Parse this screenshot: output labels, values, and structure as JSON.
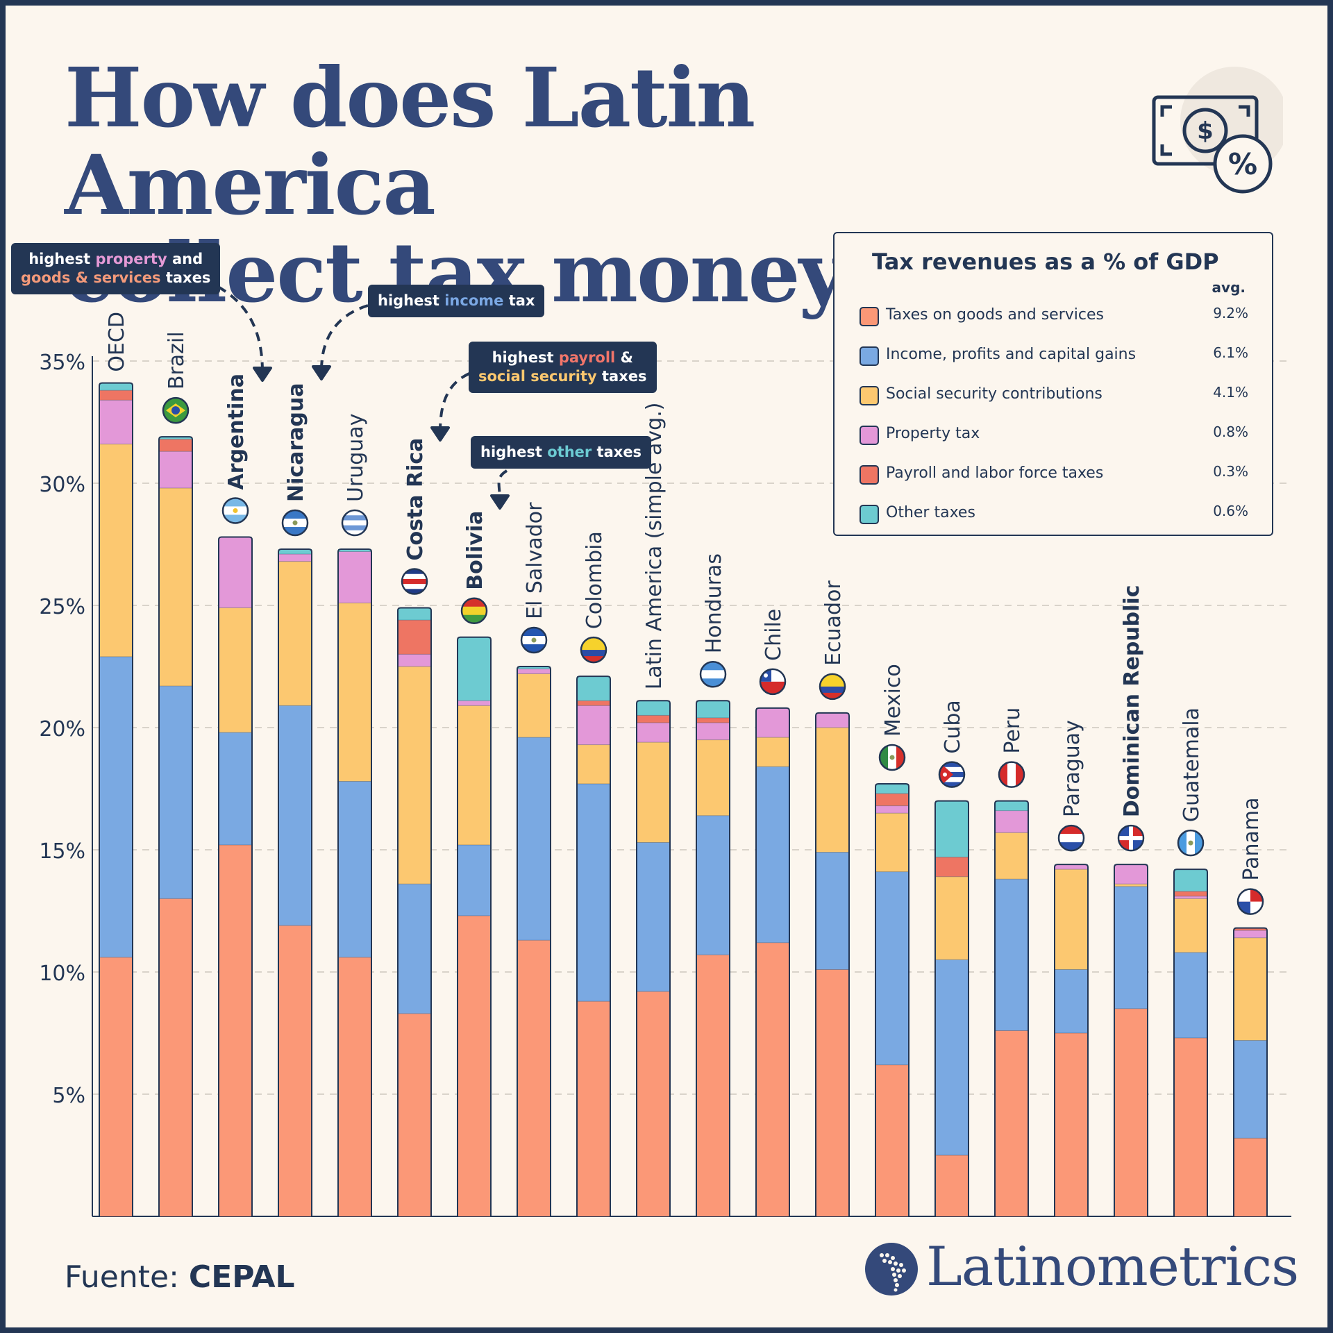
{
  "title_line1": "How does Latin America",
  "title_line2": "collect tax money?",
  "source_prefix": "Fuente:",
  "source_name": "CEPAL",
  "brand": "Latinometrics",
  "legend": {
    "title": "Tax revenues as a % of GDP",
    "avg_header": "avg.",
    "items": [
      {
        "label": "Taxes on goods and services",
        "avg": "9.2%",
        "color": "#fb9877"
      },
      {
        "label": "Income, profits and capital gains",
        "avg": "6.1%",
        "color": "#7aa9e2"
      },
      {
        "label": "Social security contributions",
        "avg": "4.1%",
        "color": "#fcc870"
      },
      {
        "label": "Property tax",
        "avg": "0.8%",
        "color": "#e398d8"
      },
      {
        "label": "Payroll and labor force taxes",
        "avg": "0.3%",
        "color": "#ee7563"
      },
      {
        "label": "Other taxes",
        "avg": "0.6%",
        "color": "#6dcbd1"
      }
    ]
  },
  "callouts": {
    "property": {
      "t1": "highest ",
      "h1": "property",
      "t2": " and",
      "h2": "goods & services",
      "t3": " taxes"
    },
    "income": {
      "t1": "highest ",
      "h1": "income",
      "t2": " tax"
    },
    "payroll": {
      "t1": "highest ",
      "h1": "payroll",
      "t2": " &",
      "h2": "social security",
      "t3": " taxes"
    },
    "other": {
      "t1": "highest ",
      "h1": "other",
      "t2": " taxes"
    }
  },
  "chart_data": {
    "type": "bar",
    "stacked": true,
    "ylim": [
      0,
      35
    ],
    "yticks": [
      "5%",
      "10%",
      "15%",
      "20%",
      "25%",
      "30%",
      "35%"
    ],
    "grid": true,
    "categories": [
      "OECD",
      "Brazil",
      "Argentina",
      "Nicaragua",
      "Uruguay",
      "Costa Rica",
      "Bolivia",
      "El Salvador",
      "Colombia",
      "Latin America (simple avg.)",
      "Honduras",
      "Chile",
      "Ecuador",
      "Mexico",
      "Cuba",
      "Peru",
      "Paraguay",
      "Dominican Republic",
      "Guatemala",
      "Panama"
    ],
    "highlighted": [
      "Argentina",
      "Nicaragua",
      "Costa Rica",
      "Bolivia",
      "Dominican Republic"
    ],
    "flag_icons": [
      "",
      "brazil-flag",
      "argentina-flag",
      "nicaragua-flag",
      "uruguay-flag",
      "costa-rica-flag",
      "bolivia-flag",
      "el-salvador-flag",
      "colombia-flag",
      "",
      "honduras-flag",
      "chile-flag",
      "ecuador-flag",
      "mexico-flag",
      "cuba-flag",
      "peru-flag",
      "paraguay-flag",
      "dominican-republic-flag",
      "guatemala-flag",
      "panama-flag"
    ],
    "series": [
      {
        "name": "Taxes on goods and services",
        "color": "#fb9877",
        "values": [
          10.6,
          13.0,
          15.2,
          11.9,
          10.6,
          8.3,
          12.3,
          11.3,
          8.8,
          9.2,
          10.7,
          11.2,
          10.1,
          6.2,
          2.5,
          7.6,
          7.5,
          8.5,
          7.3,
          3.2
        ]
      },
      {
        "name": "Income, profits and capital gains",
        "color": "#7aa9e2",
        "values": [
          12.3,
          8.7,
          4.6,
          9.0,
          7.2,
          5.3,
          2.9,
          8.3,
          8.9,
          6.1,
          5.7,
          7.2,
          4.8,
          7.9,
          8.0,
          6.2,
          2.6,
          5.0,
          3.5,
          4.0
        ]
      },
      {
        "name": "Social security contributions",
        "color": "#fcc870",
        "values": [
          8.7,
          8.1,
          5.1,
          5.9,
          7.3,
          8.9,
          5.7,
          2.6,
          1.6,
          4.1,
          3.1,
          1.2,
          5.1,
          2.4,
          3.4,
          1.9,
          4.1,
          0.1,
          2.2,
          4.2
        ]
      },
      {
        "name": "Property tax",
        "color": "#e398d8",
        "values": [
          1.8,
          1.5,
          2.9,
          0.3,
          2.1,
          0.5,
          0.2,
          0.2,
          1.6,
          0.8,
          0.7,
          1.2,
          0.6,
          0.3,
          0.0,
          0.9,
          0.2,
          0.8,
          0.1,
          0.3
        ]
      },
      {
        "name": "Payroll and labor force taxes",
        "color": "#ee7563",
        "values": [
          0.4,
          0.5,
          0.0,
          0.0,
          0.0,
          1.4,
          0.0,
          0.0,
          0.2,
          0.3,
          0.2,
          0.0,
          0.0,
          0.5,
          0.8,
          0.0,
          0.0,
          0.0,
          0.2,
          0.1
        ]
      },
      {
        "name": "Other taxes",
        "color": "#6dcbd1",
        "values": [
          0.3,
          0.1,
          0.0,
          0.2,
          0.1,
          0.5,
          2.6,
          0.1,
          1.0,
          0.6,
          0.7,
          0.0,
          0.0,
          0.4,
          2.3,
          0.4,
          0.0,
          0.0,
          0.9,
          0.0
        ]
      }
    ]
  }
}
